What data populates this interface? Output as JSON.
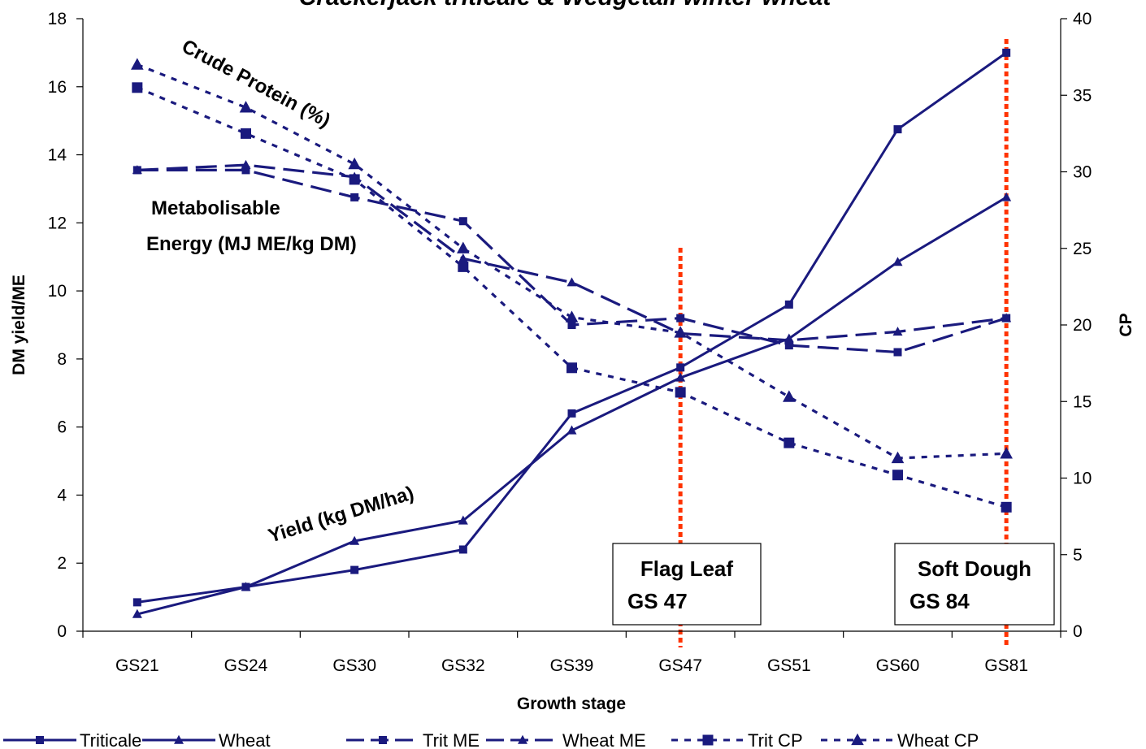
{
  "chart_data": {
    "type": "line",
    "title": "Crackerjack triticale & Wedgetail winter wheat",
    "xlabel": "Growth stage",
    "ylabel": "DM yield/ME",
    "y2label": "CP",
    "categories": [
      "GS21",
      "GS24",
      "GS30",
      "GS32",
      "GS39",
      "GS47",
      "GS51",
      "GS60",
      "GS81"
    ],
    "ylim": [
      0,
      18
    ],
    "y2lim": [
      0,
      40
    ],
    "yticks": [
      "0",
      "2",
      "4",
      "6",
      "8",
      "10",
      "12",
      "14",
      "16",
      "18"
    ],
    "y2ticks": [
      "0",
      "5",
      "10",
      "15",
      "20",
      "25",
      "30",
      "35",
      "40"
    ],
    "grid": false,
    "legend_position": "bottom",
    "colors": {
      "series": "#1a1a7e",
      "marker_line": "#ff3300"
    },
    "series": [
      {
        "name": "Triticale",
        "axis": "left",
        "style": "solid",
        "marker": "square",
        "values": [
          0.85,
          1.3,
          1.8,
          2.4,
          6.4,
          7.75,
          9.6,
          14.75,
          17.0
        ]
      },
      {
        "name": "Wheat",
        "axis": "left",
        "style": "solid",
        "marker": "triangle",
        "values": [
          0.5,
          1.3,
          2.65,
          3.25,
          5.9,
          7.45,
          8.6,
          10.85,
          12.75
        ]
      },
      {
        "name": "Trit ME",
        "axis": "left",
        "style": "longdash",
        "marker": "square",
        "values": [
          13.55,
          13.55,
          12.75,
          12.05,
          9.0,
          9.2,
          8.4,
          8.2,
          9.2
        ]
      },
      {
        "name": "Wheat ME",
        "axis": "left",
        "style": "longdash",
        "marker": "triangle",
        "values": [
          13.55,
          13.7,
          13.35,
          10.95,
          10.25,
          8.75,
          8.55,
          8.8,
          9.2
        ]
      },
      {
        "name": "Trit CP",
        "axis": "right",
        "style": "dotted",
        "marker": "square",
        "values": [
          35.5,
          32.5,
          29.5,
          23.8,
          17.2,
          15.6,
          12.3,
          10.2,
          8.1
        ]
      },
      {
        "name": "Wheat CP",
        "axis": "right",
        "style": "dotted",
        "marker": "triangle",
        "values": [
          37.0,
          34.2,
          30.5,
          25.0,
          20.5,
          19.5,
          15.3,
          11.3,
          11.6
        ]
      }
    ],
    "annotations": {
      "crude_protein": "Crude Protein (%)",
      "metabolisable_line1": "Metabolisable",
      "metabolisable_line2": "Energy (MJ ME/kg DM)",
      "yield": "Yield (kg DM/ha)",
      "flag_leaf_line1": "Flag Leaf",
      "flag_leaf_line2": "GS 47",
      "soft_dough_line1": "Soft Dough",
      "soft_dough_line2": "GS 84"
    },
    "reference_lines": [
      {
        "category": "GS47",
        "label": "Flag Leaf GS 47"
      },
      {
        "category": "GS81",
        "label": "Soft Dough GS 84"
      }
    ]
  }
}
